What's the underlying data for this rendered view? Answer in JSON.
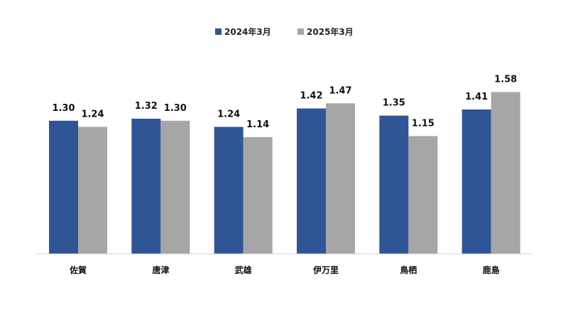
{
  "chart_data": {
    "type": "bar",
    "categories": [
      "佐賀",
      "唐津",
      "武雄",
      "伊万里",
      "鳥栖",
      "鹿島"
    ],
    "series": [
      {
        "name": "2024年3月",
        "color": "#2f5597",
        "values": [
          1.3,
          1.32,
          1.24,
          1.42,
          1.35,
          1.41
        ]
      },
      {
        "name": "2025年3月",
        "color": "#a6a6a6",
        "values": [
          1.24,
          1.3,
          1.14,
          1.47,
          1.15,
          1.58
        ]
      }
    ],
    "value_labels": [
      [
        "1.30",
        "1.32",
        "1.24",
        "1.42",
        "1.35",
        "1.41"
      ],
      [
        "1.24",
        "1.30",
        "1.14",
        "1.47",
        "1.15",
        "1.58"
      ]
    ],
    "ylim": [
      0,
      1.7
    ],
    "grid": false,
    "legend_position": "top-center",
    "title": "",
    "xlabel": "",
    "ylabel": ""
  }
}
